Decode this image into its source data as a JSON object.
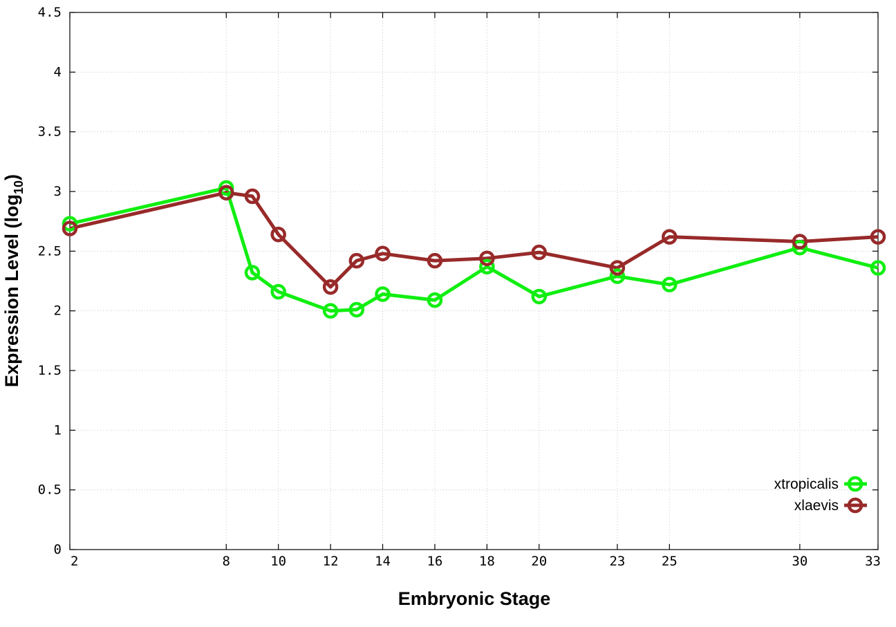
{
  "chart_data": {
    "type": "line",
    "xlabel": "Embryonic Stage",
    "ylabel_main": "Expression Level (log",
    "ylabel_sub": "10",
    "ylabel_close": ")",
    "xlim": [
      2,
      33
    ],
    "ylim": [
      0,
      4.5
    ],
    "x_ticks": [
      2,
      8,
      10,
      12,
      14,
      16,
      18,
      20,
      23,
      25,
      30,
      33
    ],
    "x_tick_labels": [
      "2",
      "8",
      "10",
      "12",
      "14",
      "16",
      "18",
      "20",
      "23",
      "25",
      "30",
      "33"
    ],
    "y_ticks": [
      0,
      0.5,
      1,
      1.5,
      2,
      2.5,
      3,
      3.5,
      4,
      4.5
    ],
    "y_tick_labels": [
      "0",
      "0.5",
      "1",
      "1.5",
      "2",
      "2.5",
      "3",
      "3.5",
      "4",
      "4.5"
    ],
    "grid": true,
    "legend_position": "bottom-right",
    "series": [
      {
        "name": "xtropicalis",
        "color": "#11ee11",
        "x": [
          2,
          8,
          9,
          10,
          12,
          13,
          14,
          16,
          18,
          20,
          23,
          25,
          30,
          33
        ],
        "y": [
          2.73,
          3.03,
          2.32,
          2.16,
          2.0,
          2.01,
          2.14,
          2.09,
          2.37,
          2.12,
          2.29,
          2.22,
          2.53,
          2.36
        ]
      },
      {
        "name": "xlaevis",
        "color": "#982a2a",
        "x": [
          2,
          8,
          9,
          10,
          12,
          13,
          14,
          16,
          18,
          20,
          23,
          25,
          30,
          33
        ],
        "y": [
          2.69,
          2.99,
          2.96,
          2.64,
          2.2,
          2.42,
          2.48,
          2.42,
          2.44,
          2.49,
          2.36,
          2.62,
          2.58,
          2.62
        ]
      }
    ]
  }
}
